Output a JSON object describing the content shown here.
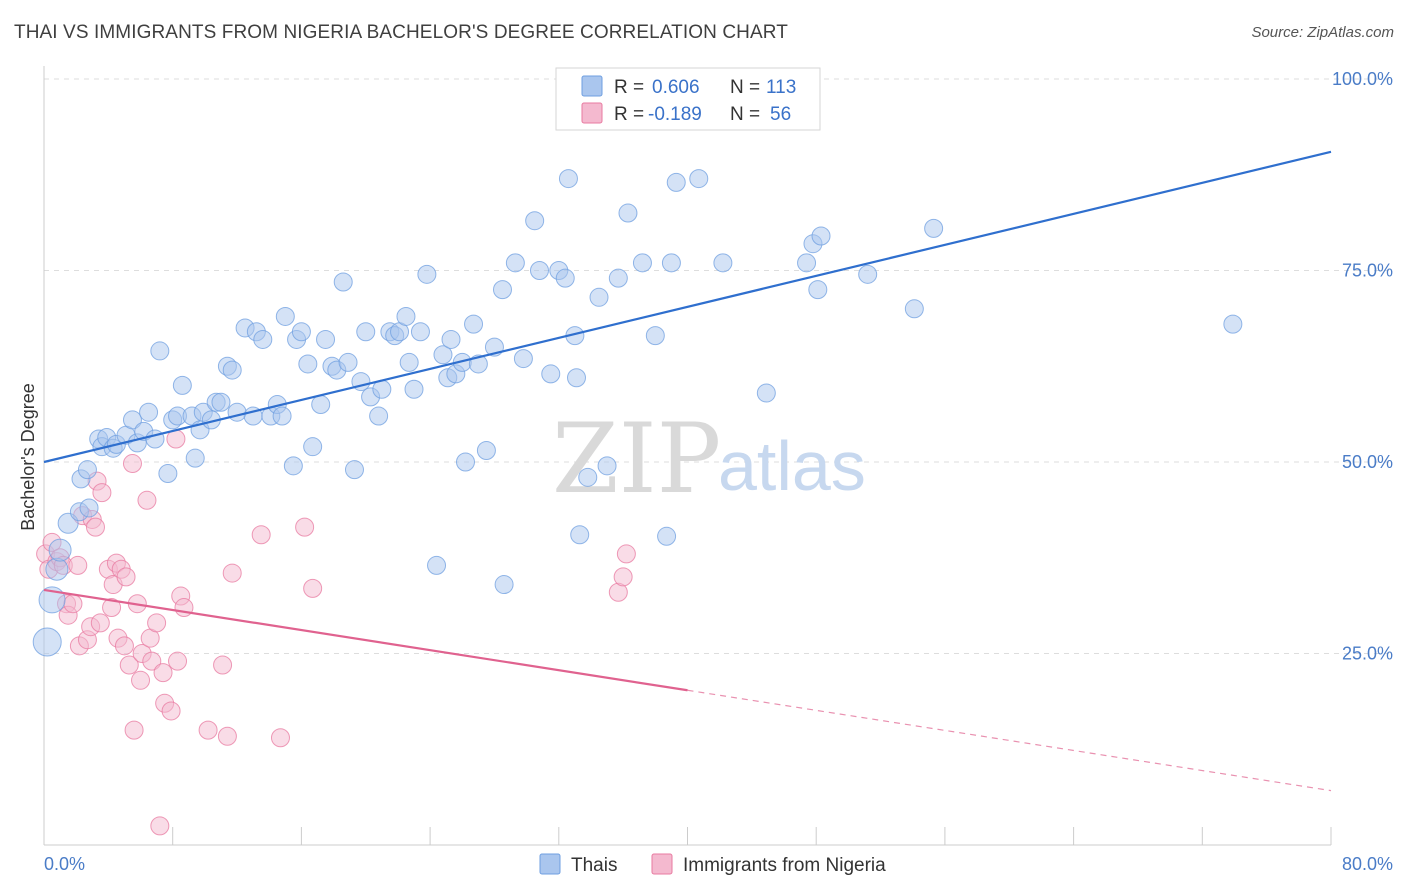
{
  "title": "THAI VS IMMIGRANTS FROM NIGERIA BACHELOR'S DEGREE CORRELATION CHART",
  "source": "Source: ZipAtlas.com",
  "watermark": {
    "part1": "ZIP",
    "part2": "atlas"
  },
  "colors": {
    "thai": "#6f9fe0",
    "thai_fill": "#aac6ee",
    "thai_line": "#2f6fce",
    "nigeria": "#e87aa0",
    "nigeria_fill": "#f4b9cf",
    "nigeria_line": "#e0628f",
    "tick": "#4a7cc7",
    "grid": "#dddddd"
  },
  "stats": {
    "thai": {
      "r_label": "R =",
      "r": "0.606",
      "n_label": "N =",
      "n": "113"
    },
    "nigeria": {
      "r_label": "R =",
      "r": "-0.189",
      "n_label": "N =",
      "n": "56"
    }
  },
  "chart_data": {
    "type": "scatter",
    "title": "THAI VS IMMIGRANTS FROM NIGERIA BACHELOR'S DEGREE CORRELATION CHART",
    "xlabel": "",
    "ylabel": "Bachelor's Degree",
    "xlim": [
      0,
      80
    ],
    "ylim": [
      0,
      100
    ],
    "x_tick_labels": [
      "0.0%",
      "80.0%"
    ],
    "y_ticks": [
      25,
      50,
      75,
      100
    ],
    "y_tick_labels": [
      "25.0%",
      "50.0%",
      "75.0%",
      "100.0%"
    ],
    "grid": true,
    "legend_position": "bottom",
    "series": [
      {
        "name": "Thais",
        "r": 0.606,
        "n": 113,
        "trend": {
          "x": [
            0,
            80
          ],
          "y": [
            50.0,
            90.5
          ],
          "dashed_from_x": null
        },
        "points": [
          [
            0.2,
            26.5,
            13
          ],
          [
            0.5,
            32,
            12
          ],
          [
            0.8,
            36,
            10
          ],
          [
            1.0,
            38.5,
            10
          ],
          [
            1.5,
            42,
            9
          ],
          [
            2.2,
            43.5,
            8
          ],
          [
            2.3,
            47.8,
            8
          ],
          [
            2.8,
            44,
            8
          ],
          [
            2.7,
            49,
            8
          ],
          [
            3.4,
            53,
            8
          ],
          [
            3.6,
            52,
            8
          ],
          [
            3.9,
            53.2,
            8
          ],
          [
            4.3,
            51.8,
            8
          ],
          [
            4.5,
            52.3,
            8
          ],
          [
            5.1,
            53.5,
            8
          ],
          [
            5.5,
            55.5,
            8
          ],
          [
            5.8,
            52.5,
            8
          ],
          [
            6.2,
            54,
            8
          ],
          [
            6.5,
            56.5,
            8
          ],
          [
            6.9,
            53,
            8
          ],
          [
            7.2,
            64.5,
            8
          ],
          [
            7.7,
            48.5,
            8
          ],
          [
            8.0,
            55.5,
            8
          ],
          [
            8.3,
            56,
            8
          ],
          [
            8.6,
            60,
            8
          ],
          [
            9.2,
            56,
            8
          ],
          [
            9.4,
            50.5,
            8
          ],
          [
            9.7,
            54.2,
            8
          ],
          [
            9.9,
            56.5,
            8
          ],
          [
            10.4,
            55.5,
            8
          ],
          [
            10.7,
            57.8,
            8
          ],
          [
            11.0,
            57.8,
            8
          ],
          [
            11.4,
            62.5,
            8
          ],
          [
            11.7,
            62,
            8
          ],
          [
            12.0,
            56.5,
            8
          ],
          [
            12.5,
            67.5,
            8
          ],
          [
            13.0,
            56,
            8
          ],
          [
            13.2,
            67,
            8
          ],
          [
            13.6,
            66,
            8
          ],
          [
            14.1,
            56,
            8
          ],
          [
            14.5,
            57.5,
            8
          ],
          [
            14.8,
            56,
            8
          ],
          [
            15.0,
            69,
            8
          ],
          [
            15.5,
            49.5,
            8
          ],
          [
            15.7,
            66,
            8
          ],
          [
            16.0,
            67,
            8
          ],
          [
            16.4,
            62.8,
            8
          ],
          [
            16.7,
            52,
            8
          ],
          [
            17.2,
            57.5,
            8
          ],
          [
            17.5,
            66,
            8
          ],
          [
            17.9,
            62.5,
            8
          ],
          [
            18.2,
            62,
            8
          ],
          [
            18.6,
            73.5,
            8
          ],
          [
            18.9,
            63,
            8
          ],
          [
            19.3,
            49,
            8
          ],
          [
            19.7,
            60.5,
            8
          ],
          [
            20.0,
            67,
            8
          ],
          [
            20.3,
            58.5,
            8
          ],
          [
            20.8,
            56,
            8
          ],
          [
            21.0,
            59.5,
            8
          ],
          [
            21.5,
            67,
            8
          ],
          [
            21.8,
            66.5,
            8
          ],
          [
            22.1,
            67,
            8
          ],
          [
            22.5,
            69,
            8
          ],
          [
            22.7,
            63,
            8
          ],
          [
            23.0,
            59.5,
            8
          ],
          [
            23.4,
            67,
            8
          ],
          [
            23.8,
            74.5,
            8
          ],
          [
            24.4,
            36.5,
            8
          ],
          [
            24.8,
            64,
            8
          ],
          [
            25.1,
            61,
            8
          ],
          [
            25.3,
            66,
            8
          ],
          [
            25.6,
            61.5,
            8
          ],
          [
            26.0,
            63,
            8
          ],
          [
            26.2,
            50,
            8
          ],
          [
            26.7,
            68,
            8
          ],
          [
            27.0,
            62.8,
            8
          ],
          [
            27.5,
            51.5,
            8
          ],
          [
            28.0,
            65,
            8
          ],
          [
            28.5,
            72.5,
            8
          ],
          [
            28.6,
            34,
            8
          ],
          [
            29.3,
            76,
            8
          ],
          [
            29.8,
            63.5,
            8
          ],
          [
            30.5,
            81.5,
            8
          ],
          [
            30.8,
            75,
            8
          ],
          [
            31.5,
            61.5,
            8
          ],
          [
            32.0,
            75,
            8
          ],
          [
            32.4,
            74,
            8
          ],
          [
            32.6,
            87,
            8
          ],
          [
            33.0,
            66.5,
            8
          ],
          [
            33.1,
            61,
            8
          ],
          [
            33.3,
            40.5,
            8
          ],
          [
            33.8,
            48,
            8
          ],
          [
            34.5,
            71.5,
            8
          ],
          [
            35.0,
            49.5,
            8
          ],
          [
            35.7,
            74,
            8
          ],
          [
            36.3,
            82.5,
            8
          ],
          [
            37.2,
            76,
            8
          ],
          [
            38.0,
            66.5,
            8
          ],
          [
            38.7,
            40.3,
            8
          ],
          [
            39.0,
            76,
            8
          ],
          [
            39.3,
            86.5,
            8
          ],
          [
            40.7,
            87,
            8
          ],
          [
            42.2,
            76,
            8
          ],
          [
            44.9,
            59,
            8
          ],
          [
            47.4,
            76,
            8
          ],
          [
            47.8,
            78.5,
            8
          ],
          [
            48.1,
            72.5,
            8
          ],
          [
            48.3,
            79.5,
            8
          ],
          [
            51.2,
            74.5,
            8
          ],
          [
            54.1,
            70,
            8
          ],
          [
            55.3,
            80.5,
            8
          ],
          [
            73.9,
            68,
            8
          ]
        ]
      },
      {
        "name": "Immigrants from Nigeria",
        "r": -0.189,
        "n": 56,
        "trend": {
          "x": [
            0,
            80
          ],
          "y": [
            33.3,
            7.1
          ],
          "dashed_from_x": 40
        },
        "points": [
          [
            0.1,
            38,
            8
          ],
          [
            0.3,
            36,
            8
          ],
          [
            0.5,
            39.5,
            8
          ],
          [
            0.8,
            37,
            8
          ],
          [
            1.0,
            37.5,
            8
          ],
          [
            1.2,
            36.5,
            8
          ],
          [
            1.4,
            31.5,
            8
          ],
          [
            1.5,
            30,
            8
          ],
          [
            1.8,
            31.5,
            8
          ],
          [
            2.1,
            36.5,
            8
          ],
          [
            2.2,
            26,
            8
          ],
          [
            2.4,
            43,
            8
          ],
          [
            2.7,
            26.8,
            8
          ],
          [
            2.9,
            28.5,
            8
          ],
          [
            3.0,
            42.5,
            8
          ],
          [
            3.2,
            41.5,
            8
          ],
          [
            3.3,
            47.5,
            8
          ],
          [
            3.5,
            29,
            8
          ],
          [
            3.6,
            46,
            8
          ],
          [
            4.0,
            36,
            8
          ],
          [
            4.2,
            31,
            8
          ],
          [
            4.3,
            34,
            8
          ],
          [
            4.5,
            36.8,
            8
          ],
          [
            4.6,
            27,
            8
          ],
          [
            4.8,
            36,
            8
          ],
          [
            5.0,
            26,
            8
          ],
          [
            5.1,
            35,
            8
          ],
          [
            5.3,
            23.5,
            8
          ],
          [
            5.5,
            49.8,
            8
          ],
          [
            5.6,
            15,
            8
          ],
          [
            5.8,
            31.5,
            8
          ],
          [
            6.0,
            21.5,
            8
          ],
          [
            6.1,
            25,
            8
          ],
          [
            6.4,
            45,
            8
          ],
          [
            6.6,
            27,
            8
          ],
          [
            6.7,
            24,
            8
          ],
          [
            7.0,
            29,
            8
          ],
          [
            7.2,
            2.5,
            8
          ],
          [
            7.4,
            22.5,
            8
          ],
          [
            7.5,
            18.5,
            8
          ],
          [
            7.9,
            17.5,
            8
          ],
          [
            8.2,
            53,
            8
          ],
          [
            8.3,
            24,
            8
          ],
          [
            8.5,
            32.5,
            8
          ],
          [
            8.7,
            31,
            8
          ],
          [
            10.2,
            15,
            8
          ],
          [
            11.1,
            23.5,
            8
          ],
          [
            11.4,
            14.2,
            8
          ],
          [
            11.7,
            35.5,
            8
          ],
          [
            13.5,
            40.5,
            8
          ],
          [
            14.7,
            14,
            8
          ],
          [
            16.2,
            41.5,
            8
          ],
          [
            16.7,
            33.5,
            8
          ],
          [
            35.7,
            33,
            8
          ],
          [
            36.0,
            35,
            8
          ],
          [
            36.2,
            38,
            8
          ]
        ]
      }
    ]
  },
  "legend": {
    "items": [
      "Thais",
      "Immigrants from Nigeria"
    ]
  }
}
